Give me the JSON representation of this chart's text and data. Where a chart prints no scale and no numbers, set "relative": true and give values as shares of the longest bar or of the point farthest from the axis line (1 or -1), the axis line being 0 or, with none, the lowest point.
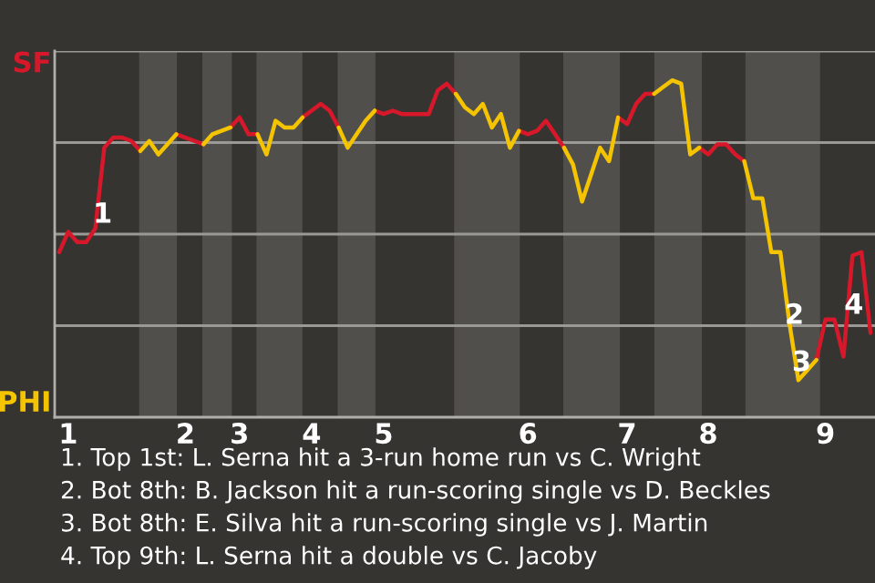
{
  "chart_data": {
    "type": "line",
    "relative": true,
    "categories": [
      null,
      "1",
      null,
      null,
      null,
      null,
      null,
      null,
      null,
      null,
      null,
      null,
      null,
      null,
      "2",
      null,
      null,
      null,
      null,
      null,
      "3",
      null,
      null,
      null,
      null,
      null,
      null,
      null,
      "4",
      null,
      null,
      null,
      null,
      null,
      null,
      null,
      "5",
      null,
      null,
      null,
      null,
      null,
      null,
      null,
      null,
      null,
      null,
      null,
      null,
      null,
      null,
      null,
      "6",
      null,
      null,
      null,
      null,
      null,
      null,
      null,
      null,
      null,
      null,
      "7",
      null,
      null,
      null,
      null,
      null,
      null,
      null,
      null,
      "8",
      null,
      null,
      null,
      null,
      null,
      null,
      null,
      null,
      null,
      null,
      null,
      null,
      "9",
      null,
      null,
      null,
      null,
      null
    ],
    "grid": "y",
    "marker": "none",
    "line_style": "solid",
    "series": [
      {
        "color": "#d7182a",
        "values": [
          0.49,
          0.55,
          0.52,
          0.52,
          0.56,
          0.8,
          0.83,
          0.83,
          0.82,
          0.79,
          null,
          null,
          null,
          0.84,
          0.83,
          0.82,
          0.81,
          null,
          null,
          0.86,
          0.89,
          0.84,
          0.84,
          null,
          null,
          null,
          null,
          0.89,
          0.91,
          0.93,
          0.91,
          0.86,
          null,
          null,
          null,
          0.91,
          0.9,
          0.91,
          0.9,
          0.9,
          0.9,
          0.9,
          0.97,
          0.99,
          0.96,
          null,
          null,
          null,
          null,
          null,
          null,
          0.85,
          0.84,
          0.85,
          0.88,
          0.84,
          0.8,
          null,
          null,
          null,
          null,
          null,
          0.89,
          0.87,
          0.93,
          0.96,
          0.96,
          null,
          null,
          null,
          null,
          0.8,
          0.78,
          0.81,
          0.81,
          0.78,
          0.76,
          null,
          null,
          null,
          null,
          null,
          null,
          null,
          0.17,
          0.29,
          0.29,
          0.18,
          0.48,
          0.49,
          0.25
        ]
      },
      {
        "color": "#f5c400",
        "values": [
          null,
          null,
          null,
          null,
          null,
          null,
          null,
          null,
          null,
          0.79,
          0.82,
          0.78,
          0.81,
          0.84,
          null,
          null,
          0.81,
          0.84,
          0.85,
          0.86,
          null,
          null,
          0.84,
          0.78,
          0.88,
          0.86,
          0.86,
          0.89,
          null,
          null,
          null,
          0.86,
          0.8,
          0.84,
          0.88,
          0.91,
          null,
          null,
          null,
          null,
          null,
          null,
          null,
          null,
          0.96,
          0.92,
          0.9,
          0.93,
          0.86,
          0.9,
          0.8,
          0.85,
          null,
          null,
          null,
          null,
          0.8,
          0.75,
          0.64,
          0.72,
          0.8,
          0.76,
          0.89,
          null,
          null,
          null,
          0.96,
          0.98,
          1,
          0.99,
          0.78,
          0.8,
          null,
          null,
          null,
          null,
          0.76,
          0.65,
          0.65,
          0.49,
          0.49,
          0.28,
          0.11,
          0.14,
          0.17,
          null,
          null,
          null,
          null,
          null,
          null
        ]
      }
    ],
    "annotations": [
      "SF",
      "PHI",
      {
        "text": "1",
        "y": 0.6
      },
      {
        "text": "2",
        "y": 0.3
      },
      {
        "text": "3",
        "y": 0.16
      },
      {
        "text": "4",
        "y": 0.33
      },
      "1. Top 1st: L. Serna hit a 3-run home run vs C. Wright",
      "2. Bot 8th: B. Jackson hit a run-scoring single vs D. Beckles",
      "3. Bot 8th: E. Silva hit a run-scoring single vs J. Martin",
      "4. Top 9th: L. Serna hit a double vs C. Jacoby"
    ]
  }
}
